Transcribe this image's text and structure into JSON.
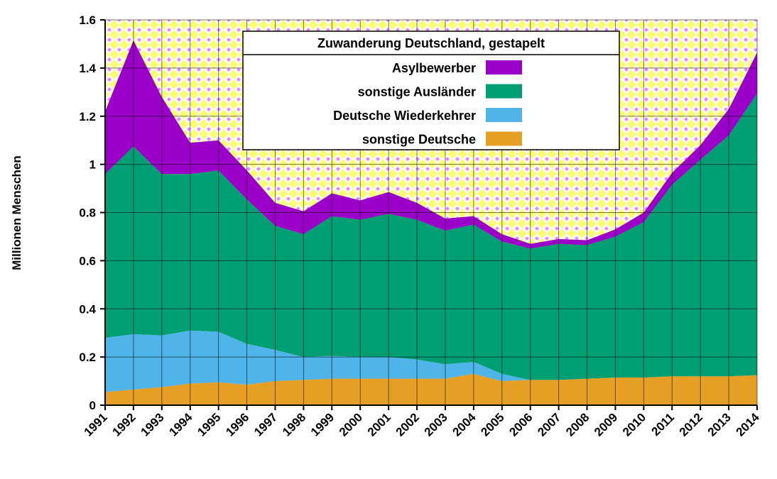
{
  "chart_data": {
    "type": "area",
    "stacked": true,
    "title": "Zuwanderung Deutschland, gestapelt",
    "ylabel": "Millionen Menschen",
    "xlabel": "",
    "ylim": [
      0,
      1.6
    ],
    "yticks": [
      0,
      0.2,
      0.4,
      0.6,
      0.8,
      1,
      1.2,
      1.4,
      1.6
    ],
    "ytick_labels": [
      "0",
      "0.2",
      "0.4",
      "0.6",
      "0.8",
      "1",
      "1.2",
      "1.4",
      "1.6"
    ],
    "grid": true,
    "legend_position": "top-center",
    "x": [
      "1991",
      "1992",
      "1993",
      "1994",
      "1995",
      "1996",
      "1997",
      "1998",
      "1999",
      "2000",
      "2001",
      "2002",
      "2003",
      "2004",
      "2005",
      "2006",
      "2007",
      "2008",
      "2009",
      "2010",
      "2011",
      "2012",
      "2013",
      "2014"
    ],
    "series": [
      {
        "name": "sonstige Deutsche",
        "color": "#e69f25",
        "values": [
          0.055,
          0.065,
          0.075,
          0.09,
          0.095,
          0.085,
          0.1,
          0.105,
          0.11,
          0.11,
          0.11,
          0.11,
          0.11,
          0.13,
          0.1,
          0.105,
          0.105,
          0.11,
          0.115,
          0.115,
          0.12,
          0.12,
          0.12,
          0.125
        ]
      },
      {
        "name": "Deutsche Wiederkehrer",
        "color": "#4fb4e8",
        "values": [
          0.225,
          0.23,
          0.215,
          0.22,
          0.21,
          0.17,
          0.13,
          0.095,
          0.095,
          0.09,
          0.09,
          0.08,
          0.06,
          0.05,
          0.03,
          0,
          0,
          0,
          0,
          0,
          0,
          0,
          0,
          0
        ]
      },
      {
        "name": "sonstige Ausländer",
        "color": "#009e73",
        "values": [
          0.68,
          0.78,
          0.67,
          0.65,
          0.67,
          0.6,
          0.515,
          0.51,
          0.58,
          0.57,
          0.595,
          0.58,
          0.555,
          0.57,
          0.55,
          0.545,
          0.565,
          0.555,
          0.585,
          0.645,
          0.795,
          0.9,
          1.0,
          1.17
        ]
      },
      {
        "name": "Asylbewerber",
        "color": "#9b00c8",
        "values": [
          0.26,
          0.44,
          0.32,
          0.13,
          0.125,
          0.12,
          0.095,
          0.095,
          0.095,
          0.08,
          0.09,
          0.07,
          0.05,
          0.035,
          0.03,
          0.02,
          0.02,
          0.02,
          0.03,
          0.04,
          0.05,
          0.06,
          0.11,
          0.17
        ]
      }
    ],
    "legend_order": [
      "Asylbewerber",
      "sonstige Ausländer",
      "Deutsche Wiederkehrer",
      "sonstige Deutsche"
    ],
    "background": {
      "color_a": "#f5ff00",
      "color_b": "#e800ff"
    }
  }
}
